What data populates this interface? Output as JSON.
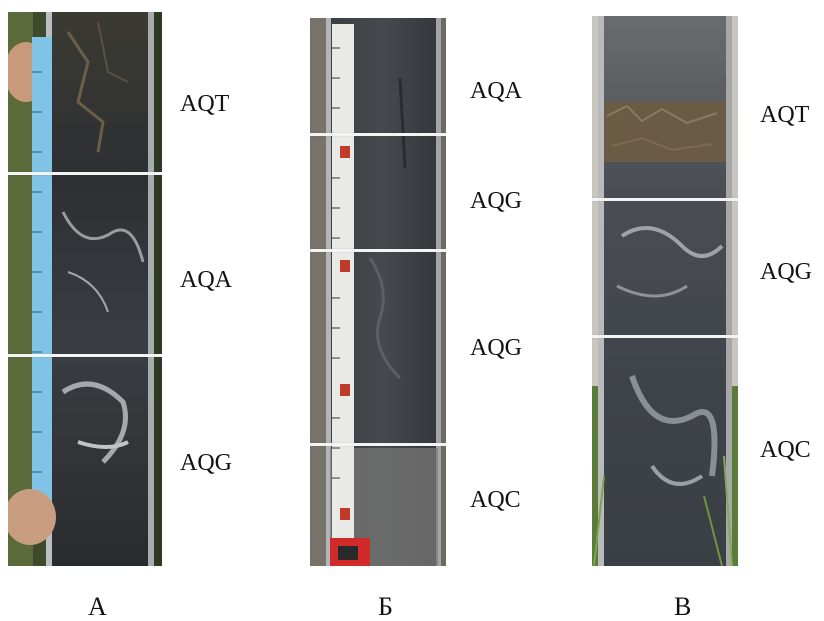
{
  "panels": [
    {
      "id": "A",
      "caption": "А",
      "horizons": [
        "AQT",
        "AQA",
        "AQG"
      ]
    },
    {
      "id": "B",
      "caption": "Б",
      "horizons": [
        "AQA",
        "AQG",
        "AQG",
        "AQC"
      ]
    },
    {
      "id": "C",
      "caption": "В",
      "horizons": [
        "AQT",
        "AQG",
        "AQC"
      ]
    }
  ],
  "colors": {
    "soil_dark": "#2e3136",
    "soil_mid": "#4a4d52",
    "steel": "#b9bcbe",
    "tape_blue": "#7fc3e6",
    "tape_white": "#e9e9e6",
    "vegetation": "#4f6a37"
  }
}
